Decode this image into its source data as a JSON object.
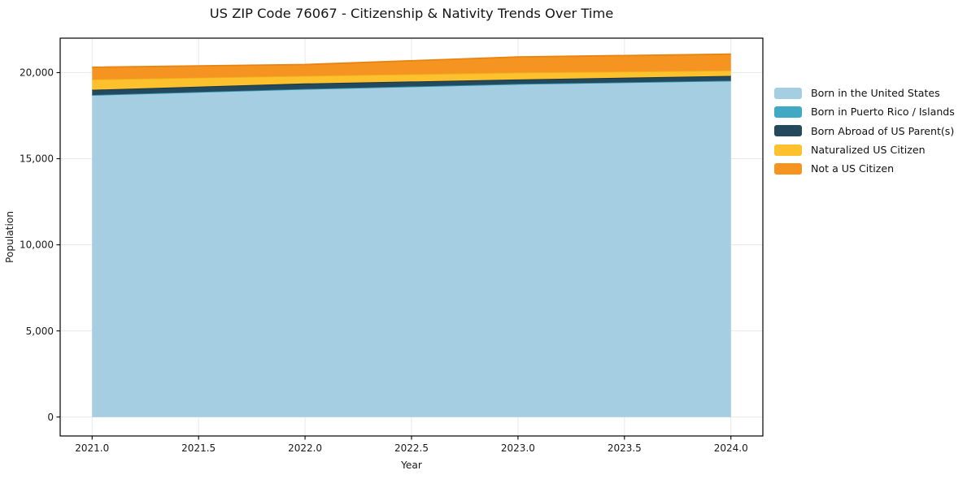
{
  "figure": {
    "background": "#ffffff"
  },
  "chart_data": {
    "type": "area",
    "stacked": true,
    "title": "US ZIP Code 76067 - Citizenship & Nativity Trends Over Time",
    "xlabel": "Year",
    "ylabel": "Population",
    "x": [
      2021,
      2022,
      2023,
      2024
    ],
    "series": [
      {
        "name": "Born in the United States",
        "color": "#A6CEE3",
        "edge": "#8CBFD9",
        "values": [
          18700,
          19050,
          19340,
          19530
        ]
      },
      {
        "name": "Born in Puerto Rico / Islands",
        "color": "#41A9C4",
        "edge": "#2E93AE",
        "values": [
          0,
          0,
          0,
          0
        ]
      },
      {
        "name": "Born Abroad of US Parent(s)",
        "color": "#24485C",
        "edge": "#16374A",
        "values": [
          300,
          320,
          260,
          280
        ]
      },
      {
        "name": "Naturalized US Citizen",
        "color": "#FCC12C",
        "edge": "#F1B01E",
        "values": [
          600,
          440,
          400,
          310
        ]
      },
      {
        "name": "Not a US Citizen",
        "color": "#F59420",
        "edge": "#E88512",
        "values": [
          710,
          660,
          910,
          950
        ]
      }
    ],
    "stack_totals": [
      20310,
      20470,
      20910,
      21070
    ],
    "x_ticks": [
      {
        "value": 2021.0,
        "label": "2021.0"
      },
      {
        "value": 2021.5,
        "label": "2021.5"
      },
      {
        "value": 2022.0,
        "label": "2022.0"
      },
      {
        "value": 2022.5,
        "label": "2022.5"
      },
      {
        "value": 2023.0,
        "label": "2023.0"
      },
      {
        "value": 2023.5,
        "label": "2023.5"
      },
      {
        "value": 2024.0,
        "label": "2024.0"
      }
    ],
    "y_ticks": [
      {
        "value": 0,
        "label": "0"
      },
      {
        "value": 5000,
        "label": "5,000"
      },
      {
        "value": 10000,
        "label": "10,000"
      },
      {
        "value": 15000,
        "label": "15,000"
      },
      {
        "value": 20000,
        "label": "20,000"
      }
    ],
    "xlim": [
      2020.85,
      2024.15
    ],
    "ylim": [
      -1100,
      22000
    ],
    "grid": true,
    "grid_color": "#e8e8e8",
    "axis_color": "#000000",
    "tick_label_color": "#1a1a1a",
    "legend_position": "right",
    "legend_frame": false
  }
}
